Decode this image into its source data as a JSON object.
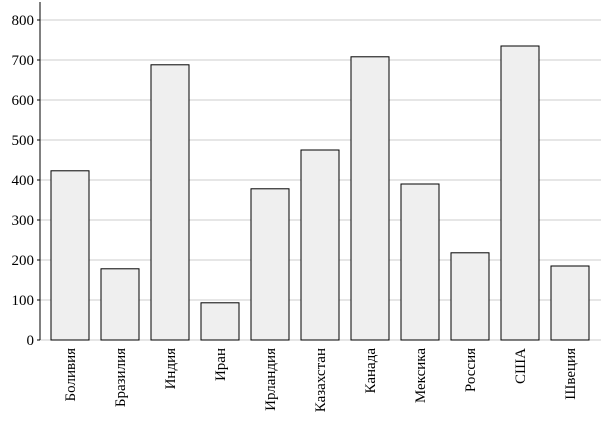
{
  "chart_data": {
    "type": "bar",
    "categories": [
      "Боливия",
      "Бразилия",
      "Индия",
      "Иран",
      "Ирландия",
      "Казахстан",
      "Канада",
      "Мексика",
      "Россия",
      "США",
      "Швеция"
    ],
    "values": [
      423,
      178,
      688,
      93,
      378,
      475,
      708,
      390,
      218,
      735,
      185
    ],
    "color": "#efefef",
    "ylim": [
      0,
      845
    ],
    "yticks": [
      0,
      100,
      200,
      300,
      400,
      500,
      600,
      700,
      800
    ],
    "grid": true
  }
}
